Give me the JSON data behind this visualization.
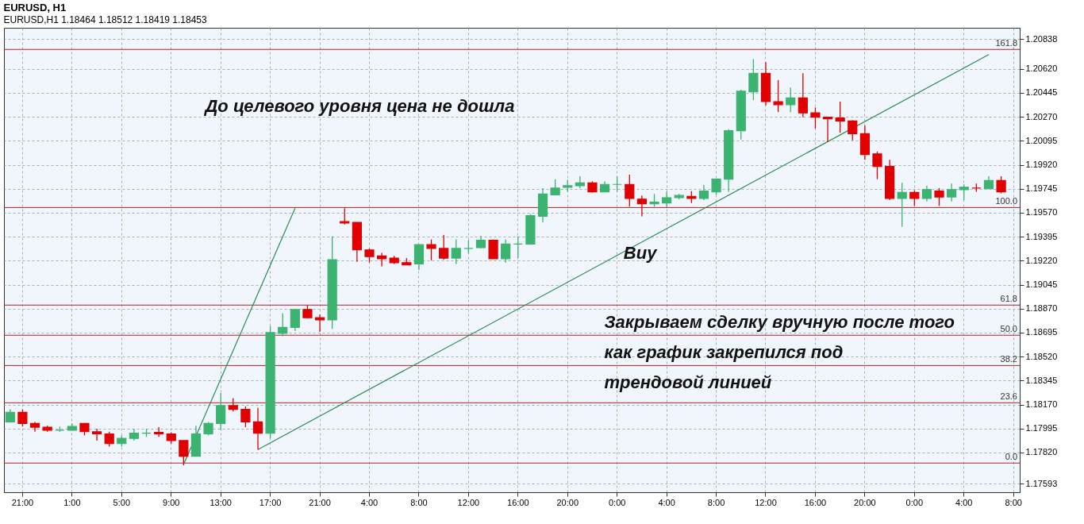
{
  "chart_data": {
    "type": "candlestick",
    "title": "EURUSD, H1",
    "subtitle": "EURUSD,H1  1.18464  1.18512  1.18419  1.18453",
    "categories": [
      null,
      "21:00",
      null,
      null,
      null,
      "1:00",
      null,
      null,
      null,
      "5:00",
      null,
      null,
      null,
      "9:00",
      null,
      null,
      null,
      "13:00",
      null,
      null,
      null,
      "17:00",
      null,
      null,
      null,
      "21:00",
      null,
      null,
      null,
      "4:00",
      null,
      null,
      null,
      "8:00",
      null,
      null,
      null,
      "12:00",
      null,
      null,
      null,
      "16:00",
      null,
      null,
      null,
      "20:00",
      null,
      null,
      null,
      "0:00",
      null,
      null,
      null,
      "4:00",
      null,
      null,
      null,
      "8:00",
      null,
      null,
      null,
      "12:00",
      null,
      null,
      null,
      "16:00",
      null,
      null,
      null,
      "20:00",
      null,
      null,
      null,
      "0:00",
      null,
      null,
      null,
      "4:00",
      null,
      null,
      null,
      "8:00"
    ],
    "ohlc": [
      [
        1.18043,
        1.18135,
        1.18043,
        1.18113
      ],
      [
        1.18113,
        1.18135,
        1.1801,
        1.18032
      ],
      [
        1.18032,
        1.18043,
        1.17972,
        1.18005
      ],
      [
        1.18005,
        1.18016,
        1.17972,
        1.17983
      ],
      [
        1.17983,
        1.1801,
        1.17972,
        1.17983
      ],
      [
        1.17983,
        1.18032,
        1.17983,
        1.1801
      ],
      [
        1.18032,
        1.18032,
        1.17945,
        1.17972
      ],
      [
        1.17972,
        1.17994,
        1.17907,
        1.17956
      ],
      [
        1.17956,
        1.17972,
        1.17863,
        1.17885
      ],
      [
        1.17885,
        1.17945,
        1.17863,
        1.17923
      ],
      [
        1.17923,
        1.17994,
        1.17907,
        1.17961
      ],
      [
        1.17961,
        1.17994,
        1.17934,
        1.17961
      ],
      [
        1.17967,
        1.18005,
        1.17934,
        1.17956
      ],
      [
        1.17956,
        1.17967,
        1.17885,
        1.17907
      ],
      [
        1.17907,
        1.17907,
        1.17727,
        1.17793
      ],
      [
        1.17793,
        1.18016,
        1.17793,
        1.17956
      ],
      [
        1.17956,
        1.18043,
        1.17945,
        1.18032
      ],
      [
        1.18032,
        1.18255,
        1.17983,
        1.18162
      ],
      [
        1.18162,
        1.18217,
        1.18119,
        1.18135
      ],
      [
        1.18135,
        1.18157,
        1.18005,
        1.18043
      ],
      [
        1.18043,
        1.18146,
        1.17842,
        1.17961
      ],
      [
        1.17961,
        1.18744,
        1.17923,
        1.18695
      ],
      [
        1.1869,
        1.18837,
        1.18668,
        1.18733
      ],
      [
        1.18733,
        1.18864,
        1.18706,
        1.18864
      ],
      [
        1.18864,
        1.18896,
        1.18799,
        1.18804
      ],
      [
        1.18804,
        1.18826,
        1.18701,
        1.18788
      ],
      [
        1.18788,
        1.19397,
        1.18722,
        1.19228
      ],
      [
        1.19505,
        1.19603,
        1.19484,
        1.19495
      ],
      [
        1.195,
        1.195,
        1.19212,
        1.19299
      ],
      [
        1.19299,
        1.1931,
        1.19206,
        1.1925
      ],
      [
        1.19255,
        1.19277,
        1.19179,
        1.19234
      ],
      [
        1.19239,
        1.19255,
        1.19196,
        1.19206
      ],
      [
        1.19206,
        1.19239,
        1.1919,
        1.1919
      ],
      [
        1.19196,
        1.19337,
        1.19152,
        1.19337
      ],
      [
        1.19337,
        1.19375,
        1.19223,
        1.1931
      ],
      [
        1.1931,
        1.19408,
        1.19228,
        1.19239
      ],
      [
        1.19239,
        1.19375,
        1.19196,
        1.1931
      ],
      [
        1.1931,
        1.1937,
        1.19272,
        1.1931
      ],
      [
        1.19315,
        1.19402,
        1.1931,
        1.1937
      ],
      [
        1.1937,
        1.19375,
        1.19234,
        1.19234
      ],
      [
        1.19234,
        1.19375,
        1.19206,
        1.19342
      ],
      [
        1.19342,
        1.19397,
        1.19239,
        1.19342
      ],
      [
        1.19342,
        1.1956,
        1.19342,
        1.19549
      ],
      [
        1.19544,
        1.1975,
        1.195,
        1.19707
      ],
      [
        1.19701,
        1.19815,
        1.19701,
        1.1975
      ],
      [
        1.19756,
        1.1981,
        1.19723,
        1.19767
      ],
      [
        1.19767,
        1.19837,
        1.1975,
        1.19788
      ],
      [
        1.19788,
        1.19799,
        1.19718,
        1.19723
      ],
      [
        1.19723,
        1.19799,
        1.19723,
        1.19777
      ],
      [
        1.19777,
        1.19837,
        1.19723,
        1.19777
      ],
      [
        1.19777,
        1.19848,
        1.19614,
        1.19674
      ],
      [
        1.19669,
        1.19696,
        1.19544,
        1.19636
      ],
      [
        1.19636,
        1.19707,
        1.19614,
        1.19647
      ],
      [
        1.19641,
        1.19723,
        1.19609,
        1.1968
      ],
      [
        1.1968,
        1.19707,
        1.19669,
        1.19696
      ],
      [
        1.1969,
        1.19728,
        1.19641,
        1.19674
      ],
      [
        1.19674,
        1.19772,
        1.19663,
        1.19728
      ],
      [
        1.19723,
        1.19815,
        1.19701,
        1.19815
      ],
      [
        1.19815,
        1.2018,
        1.19723,
        1.20169
      ],
      [
        1.20169,
        1.20468,
        1.20104,
        1.20457
      ],
      [
        1.20452,
        1.20691,
        1.20392,
        1.20588
      ],
      [
        1.20588,
        1.20669,
        1.20354,
        1.20381
      ],
      [
        1.20381,
        1.20539,
        1.20305,
        1.20359
      ],
      [
        1.20359,
        1.20484,
        1.20305,
        1.20408
      ],
      [
        1.20408,
        1.20588,
        1.20267,
        1.20299
      ],
      [
        1.20299,
        1.20338,
        1.20185,
        1.20267
      ],
      [
        1.20267,
        1.20267,
        1.20087,
        1.20256
      ],
      [
        1.20261,
        1.20381,
        1.20153,
        1.2024
      ],
      [
        1.2024,
        1.20245,
        1.20098,
        1.20147
      ],
      [
        1.20147,
        1.20207,
        1.19957,
        1.19995
      ],
      [
        1.2,
        1.20017,
        1.19815,
        1.19908
      ],
      [
        1.19908,
        1.19957,
        1.19663,
        1.19674
      ],
      [
        1.19674,
        1.19788,
        1.19467,
        1.19718
      ],
      [
        1.19718,
        1.19734,
        1.1962,
        1.19674
      ],
      [
        1.19674,
        1.19767,
        1.19652,
        1.19739
      ],
      [
        1.19728,
        1.1975,
        1.1962,
        1.19685
      ],
      [
        1.19685,
        1.19783,
        1.19652,
        1.19739
      ],
      [
        1.19739,
        1.19777,
        1.19663,
        1.19756
      ],
      [
        1.1975,
        1.19783,
        1.19723,
        1.1975
      ],
      [
        1.19745,
        1.19837,
        1.19745,
        1.19805
      ],
      [
        1.19805,
        1.19837,
        1.19712,
        1.19723
      ],
      null
    ],
    "colors": [
      "#3cb371",
      "#e00000",
      "#e00000",
      "#e00000",
      "#3cb371",
      "#3cb371",
      "#e00000",
      "#e00000",
      "#e00000",
      "#3cb371",
      "#3cb371",
      "#3cb371",
      "#e00000",
      "#e00000",
      "#e00000",
      "#3cb371",
      "#3cb371",
      "#3cb371",
      "#e00000",
      "#e00000",
      "#e00000",
      "#3cb371",
      "#3cb371",
      "#3cb371",
      "#e00000",
      "#e00000",
      "#3cb371",
      "#e00000",
      "#e00000",
      "#e00000",
      "#e00000",
      "#e00000",
      "#e00000",
      "#3cb371",
      "#e00000",
      "#e00000",
      "#3cb371",
      "#3cb371",
      "#3cb371",
      "#e00000",
      "#3cb371",
      "#3cb371",
      "#3cb371",
      "#3cb371",
      "#3cb371",
      "#3cb371",
      "#3cb371",
      "#e00000",
      "#3cb371",
      "#3cb371",
      "#e00000",
      "#e00000",
      "#3cb371",
      "#3cb371",
      "#3cb371",
      "#e00000",
      "#3cb371",
      "#3cb371",
      "#3cb371",
      "#3cb371",
      "#3cb371",
      "#e00000",
      "#e00000",
      "#3cb371",
      "#e00000",
      "#e00000",
      "#e00000",
      "#e00000",
      "#e00000",
      "#e00000",
      "#e00000",
      "#e00000",
      "#3cb371",
      "#e00000",
      "#3cb371",
      "#e00000",
      "#3cb371",
      "#3cb371",
      "#e00000",
      "#3cb371",
      "#e00000",
      null
    ],
    "series": [
      {
        "type": "line",
        "color": "#2e8b57",
        "values": [
          null,
          null,
          null,
          null,
          null,
          null,
          null,
          null,
          null,
          null,
          null,
          null,
          null,
          null,
          1.17733,
          null,
          null,
          null,
          null,
          null,
          null,
          null,
          null,
          1.19603,
          null,
          null,
          null,
          null,
          null,
          null,
          null,
          null,
          null,
          null,
          null,
          null,
          null,
          null,
          null,
          null,
          null,
          null,
          null,
          null,
          null,
          null,
          null,
          null,
          null,
          null,
          null,
          null,
          null,
          null,
          null,
          null,
          null,
          null,
          null,
          null,
          null,
          null,
          null,
          null,
          null,
          null,
          null,
          null,
          null,
          null,
          null,
          null,
          null,
          null,
          null,
          null,
          null,
          null,
          null,
          null,
          null,
          null
        ]
      },
      {
        "type": "line",
        "color": "#2e8b57",
        "values": [
          null,
          null,
          null,
          null,
          null,
          null,
          null,
          null,
          null,
          null,
          null,
          null,
          null,
          null,
          null,
          null,
          null,
          null,
          null,
          null,
          1.17842,
          null,
          null,
          null,
          null,
          null,
          null,
          null,
          null,
          null,
          null,
          null,
          null,
          null,
          null,
          null,
          null,
          null,
          null,
          null,
          null,
          null,
          null,
          null,
          null,
          null,
          null,
          null,
          null,
          null,
          null,
          null,
          null,
          null,
          null,
          null,
          null,
          null,
          null,
          null,
          null,
          null,
          null,
          null,
          null,
          null,
          null,
          null,
          null,
          null,
          null,
          null,
          null,
          null,
          null,
          null,
          null,
          null,
          null,
          1.20724,
          null,
          null
        ]
      }
    ],
    "ylim": [
      1.1753,
      1.2092
    ],
    "yticks": [
      {
        "value": 1.20838,
        "label": "1.20838"
      },
      {
        "value": 1.2062,
        "label": "1.20620"
      },
      {
        "value": 1.20445,
        "label": "1.20445"
      },
      {
        "value": 1.2027,
        "label": "1.20270"
      },
      {
        "value": 1.20095,
        "label": "1.20095"
      },
      {
        "value": 1.1992,
        "label": "1.19920"
      },
      {
        "value": 1.19745,
        "label": "1.19745"
      },
      {
        "value": 1.1957,
        "label": "1.19570"
      },
      {
        "value": 1.19395,
        "label": "1.19395"
      },
      {
        "value": 1.1922,
        "label": "1.19220"
      },
      {
        "value": 1.19045,
        "label": "1.19045"
      },
      {
        "value": 1.1887,
        "label": "1.18870"
      },
      {
        "value": 1.18695,
        "label": "1.18695"
      },
      {
        "value": 1.1852,
        "label": "1.18520"
      },
      {
        "value": 1.18345,
        "label": "1.18345"
      },
      {
        "value": 1.1817,
        "label": "1.18170"
      },
      {
        "value": 1.17995,
        "label": "1.17995"
      },
      {
        "value": 1.1782,
        "label": "1.17820"
      },
      {
        "value": 1.17593,
        "label": "1.17593"
      }
    ],
    "ref_lines": [
      {
        "axis": "y",
        "value": 1.20762,
        "color": "#b22222"
      },
      {
        "axis": "y",
        "value": 1.19608,
        "color": "#b22222"
      },
      {
        "axis": "y",
        "value": 1.18896,
        "color": "#b22222"
      },
      {
        "axis": "y",
        "value": 1.18676,
        "color": "#b22222"
      },
      {
        "axis": "y",
        "value": 1.18455,
        "color": "#b22222"
      },
      {
        "axis": "y",
        "value": 1.18183,
        "color": "#b22222"
      },
      {
        "axis": "y",
        "value": 1.17743,
        "color": "#b22222"
      }
    ],
    "annotations": [
      "До целевого уровня цена не дошла",
      "Buy",
      "Закрываем сделку вручную после того\nкак график закрепился под\nтрендовой линией",
      {
        "text": "161.8",
        "y": 1.20762
      },
      {
        "text": "100.0",
        "y": 1.19608
      },
      {
        "text": "61.8",
        "y": 1.18896
      },
      {
        "text": "50.0",
        "y": 1.18676
      },
      {
        "text": "38.2",
        "y": 1.18455
      },
      {
        "text": "23.6",
        "y": 1.18183
      },
      {
        "text": "0.0",
        "y": 1.17743
      }
    ],
    "grid": true
  }
}
